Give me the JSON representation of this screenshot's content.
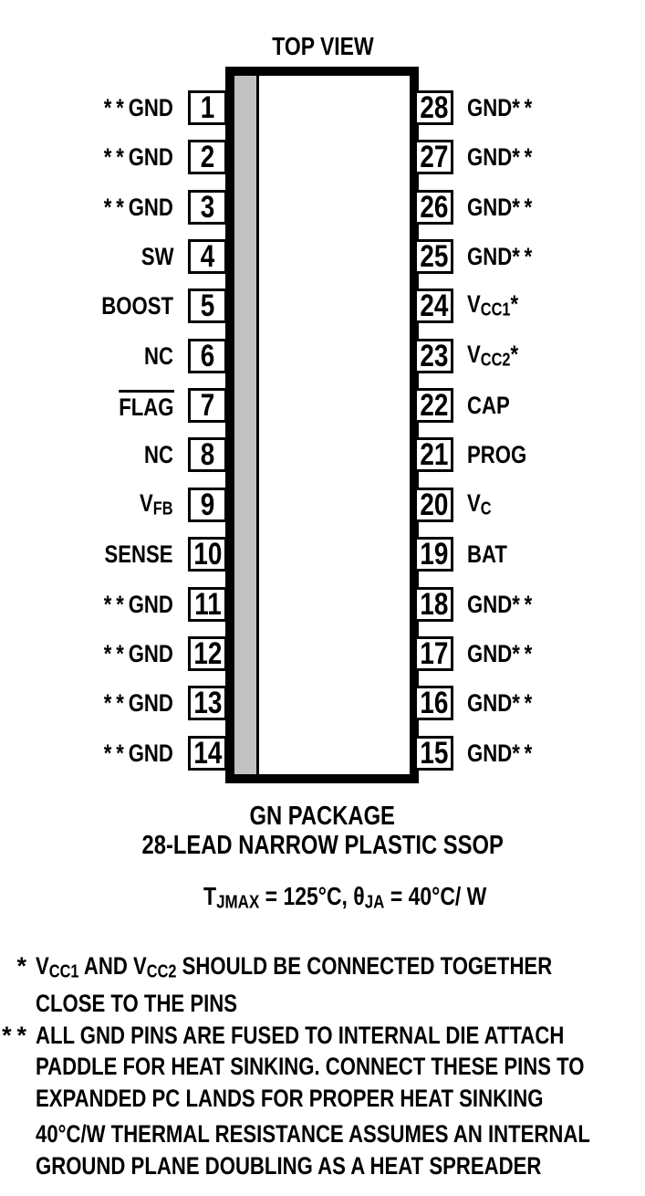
{
  "figure": {
    "title": "TOP VIEW",
    "package_name": "GN PACKAGE",
    "package_desc": "28-LEAD NARROW PLASTIC SSOP",
    "thermal_spec": [
      {
        "t": "T"
      },
      {
        "s": "JMAX"
      },
      {
        "t": " = 125°C, θ"
      },
      {
        "s": "JA"
      },
      {
        "t": " = 40°C/ W"
      }
    ],
    "colors": {
      "ink": "#000000",
      "paper": "#ffffff",
      "stripe_gray": "#c2c2c2"
    }
  },
  "pins": {
    "left": [
      {
        "num": "1",
        "label": [
          {
            "st": "**"
          },
          {
            "t": "GND"
          }
        ]
      },
      {
        "num": "2",
        "label": [
          {
            "st": "**"
          },
          {
            "t": "GND"
          }
        ]
      },
      {
        "num": "3",
        "label": [
          {
            "st": "**"
          },
          {
            "t": "GND"
          }
        ]
      },
      {
        "num": "4",
        "label": [
          {
            "t": "SW"
          }
        ]
      },
      {
        "num": "5",
        "label": [
          {
            "t": "BOOST"
          }
        ]
      },
      {
        "num": "6",
        "label": [
          {
            "t": "NC"
          }
        ]
      },
      {
        "num": "7",
        "label": [
          {
            "o": "FLAG"
          }
        ]
      },
      {
        "num": "8",
        "label": [
          {
            "t": "NC"
          }
        ]
      },
      {
        "num": "9",
        "label": [
          {
            "t": "V"
          },
          {
            "s": "FB"
          }
        ]
      },
      {
        "num": "10",
        "label": [
          {
            "t": "SENSE"
          }
        ]
      },
      {
        "num": "11",
        "label": [
          {
            "st": "**"
          },
          {
            "t": "GND"
          }
        ]
      },
      {
        "num": "12",
        "label": [
          {
            "st": "**"
          },
          {
            "t": "GND"
          }
        ]
      },
      {
        "num": "13",
        "label": [
          {
            "st": "**"
          },
          {
            "t": "GND"
          }
        ]
      },
      {
        "num": "14",
        "label": [
          {
            "st": "**"
          },
          {
            "t": "GND"
          }
        ]
      }
    ],
    "right": [
      {
        "num": "28",
        "label": [
          {
            "t": "GND"
          },
          {
            "st": "**"
          }
        ]
      },
      {
        "num": "27",
        "label": [
          {
            "t": "GND"
          },
          {
            "st": "**"
          }
        ]
      },
      {
        "num": "26",
        "label": [
          {
            "t": "GND"
          },
          {
            "st": "**"
          }
        ]
      },
      {
        "num": "25",
        "label": [
          {
            "t": "GND"
          },
          {
            "st": "**"
          }
        ]
      },
      {
        "num": "24",
        "label": [
          {
            "t": "V"
          },
          {
            "s": "CC1"
          },
          {
            "st": "*"
          }
        ]
      },
      {
        "num": "23",
        "label": [
          {
            "t": "V"
          },
          {
            "s": "CC2"
          },
          {
            "st": "*"
          }
        ]
      },
      {
        "num": "22",
        "label": [
          {
            "t": "CAP"
          }
        ]
      },
      {
        "num": "21",
        "label": [
          {
            "t": "PROG"
          }
        ]
      },
      {
        "num": "20",
        "label": [
          {
            "t": "V"
          },
          {
            "s": "C"
          }
        ]
      },
      {
        "num": "19",
        "label": [
          {
            "t": "BAT"
          }
        ]
      },
      {
        "num": "18",
        "label": [
          {
            "t": "GND"
          },
          {
            "st": "**"
          }
        ]
      },
      {
        "num": "17",
        "label": [
          {
            "t": "GND"
          },
          {
            "st": "**"
          }
        ]
      },
      {
        "num": "16",
        "label": [
          {
            "t": "GND"
          },
          {
            "st": "**"
          }
        ]
      },
      {
        "num": "15",
        "label": [
          {
            "t": "GND"
          },
          {
            "st": "**"
          }
        ]
      }
    ]
  },
  "notes": [
    {
      "marker": "*",
      "lines": [
        [
          {
            "t": "V"
          },
          {
            "s": "CC1"
          },
          {
            "t": " AND V"
          },
          {
            "s": "CC2"
          },
          {
            "t": " SHOULD BE CONNECTED TOGETHER"
          }
        ],
        [
          {
            "t": "CLOSE TO THE PINS"
          }
        ]
      ]
    },
    {
      "marker": "**",
      "lines": [
        [
          {
            "t": "ALL GND PINS ARE FUSED TO INTERNAL DIE ATTACH"
          }
        ],
        [
          {
            "t": "PADDLE FOR HEAT SINKING. CONNECT THESE PINS TO"
          }
        ],
        [
          {
            "t": "EXPANDED PC LANDS FOR PROPER HEAT SINKING"
          }
        ]
      ]
    },
    {
      "marker": "",
      "lines": [
        [
          {
            "t": "40°C/W THERMAL RESISTANCE ASSUMES AN INTERNAL"
          }
        ],
        [
          {
            "t": "GROUND PLANE DOUBLING AS A HEAT SPREADER"
          }
        ]
      ]
    }
  ]
}
